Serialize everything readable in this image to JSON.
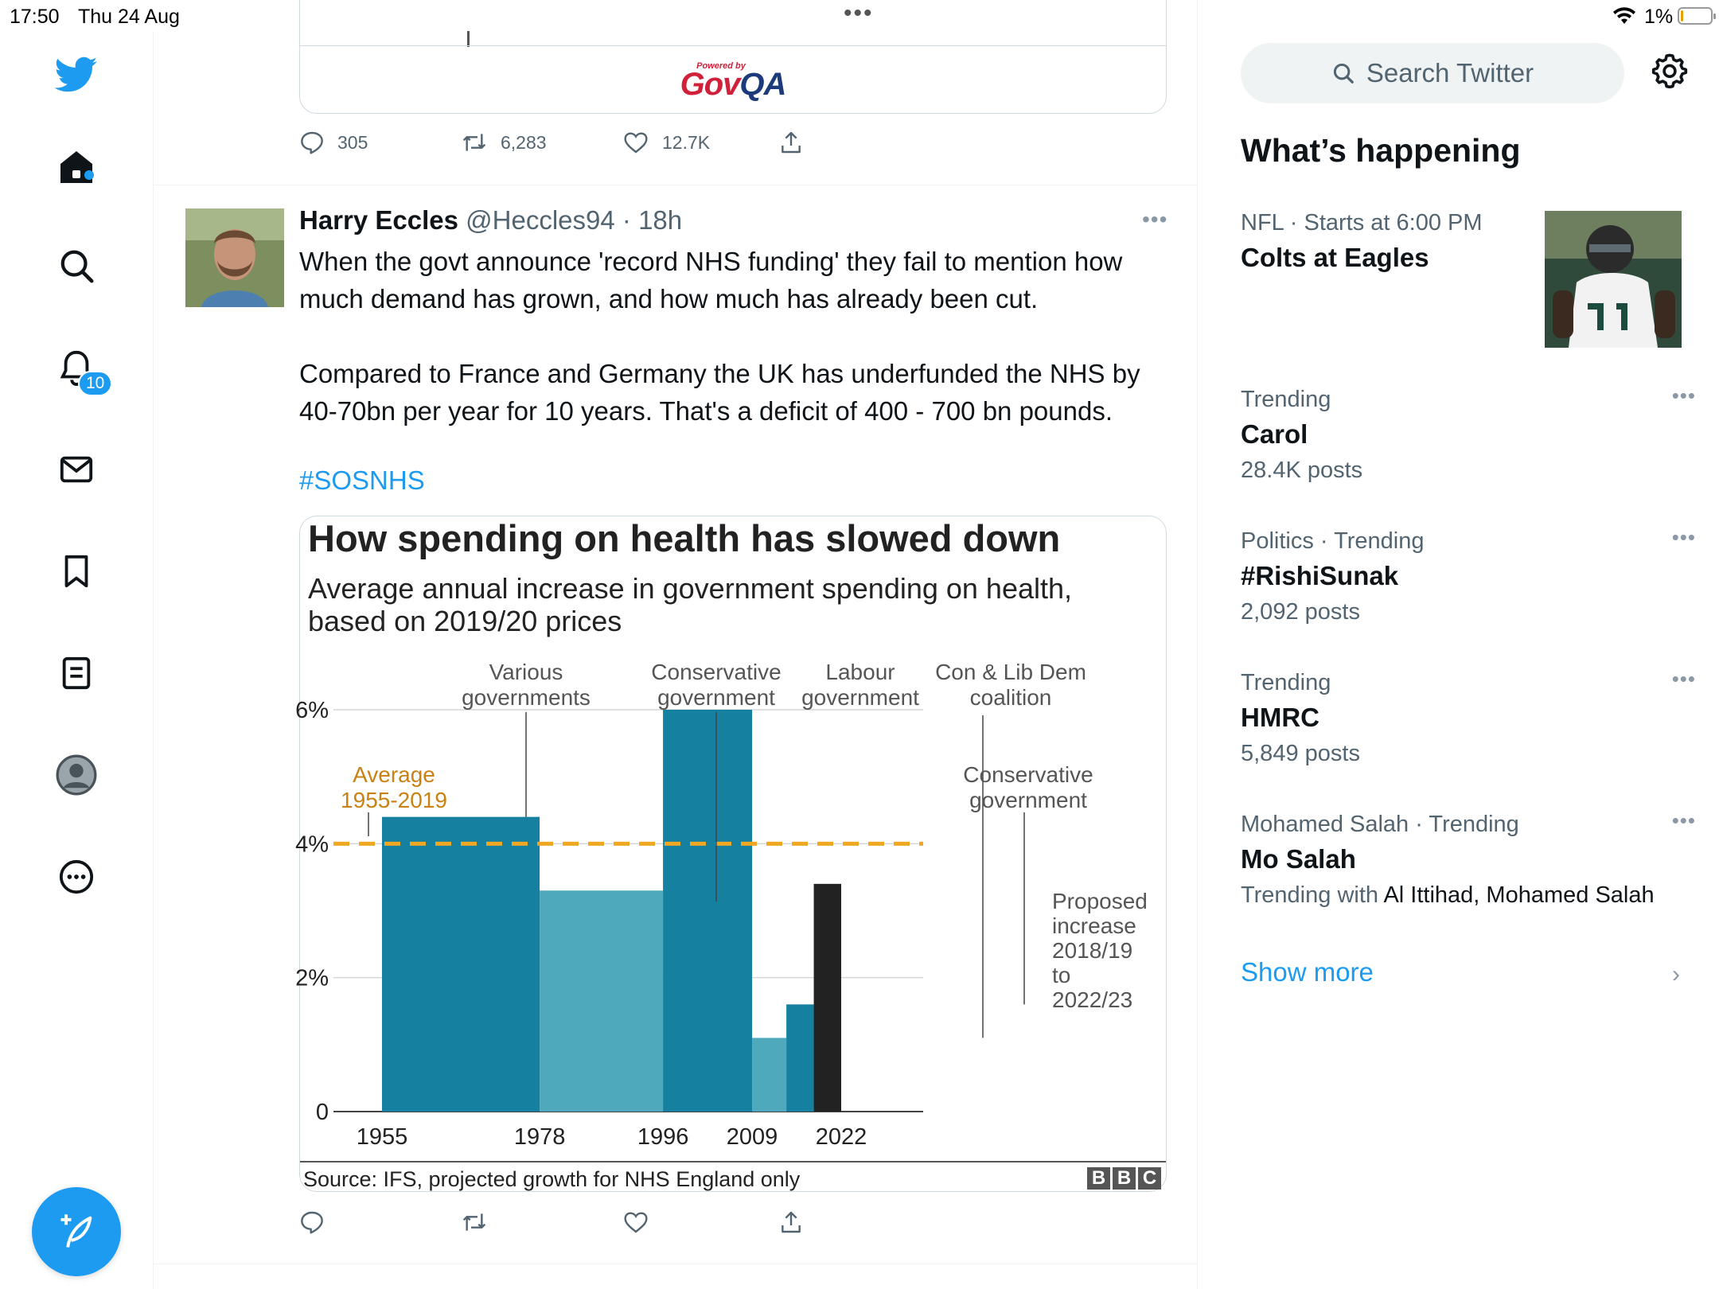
{
  "status_bar": {
    "time": "17:50",
    "date": "Thu 24 Aug",
    "battery": "1%",
    "battery_level": 0.01
  },
  "nav": {
    "items": [
      "home",
      "explore",
      "notifications",
      "messages",
      "bookmarks",
      "lists",
      "profile",
      "more"
    ],
    "notifications_badge": "10",
    "compose_icon": "compose-feather-icon"
  },
  "previous_tweet": {
    "card_logo_small": "Powered by",
    "card_logo_main": "Gov",
    "card_logo_accent": "QA",
    "reply_count": "305",
    "retweet_count": "6,283",
    "like_count": "12.7K"
  },
  "tweet": {
    "author_name": "Harry Eccles",
    "handle": "@Heccles94",
    "time": "18h",
    "text": "When the govt announce 'record NHS funding' they fail to mention how much demand has grown, and how much has already been cut.\n\nCompared to France and Germany the UK has underfunded the NHS by 40-70bn per year for 10 years. That's a deficit of 400 - 700 bn pounds.",
    "hashtag": "#SOSNHS"
  },
  "chart_data": {
    "type": "bar",
    "title": "How spending on health has slowed down",
    "subtitle": "Average annual increase in government spending on health,\nbased on 2019/20 prices",
    "x_ticks": [
      "1955",
      "1978",
      "1996",
      "2009",
      "2022"
    ],
    "y_ticks": [
      "0",
      "2%",
      "4%",
      "6%"
    ],
    "ylim": [
      0,
      6
    ],
    "series": [
      {
        "label": "Various governments",
        "start": 1955,
        "end": 1978,
        "value": 4.4,
        "color": "#1680a0"
      },
      {
        "label": "Conservative government",
        "start": 1978,
        "end": 1996,
        "value": 3.3,
        "color": "#4fa9bd"
      },
      {
        "label": "Labour government",
        "start": 1996,
        "end": 2009,
        "value": 6.0,
        "color": "#1680a0"
      },
      {
        "label": "Con & Lib Dem coalition",
        "start": 2009,
        "end": 2014,
        "value": 1.1,
        "color": "#4fa9bd"
      },
      {
        "label": "Conservative government",
        "start": 2014,
        "end": 2018,
        "value": 1.6,
        "color": "#1680a0"
      },
      {
        "label": "Proposed increase 2018/19 to 2022/23",
        "start": 2018,
        "end": 2022,
        "value": 3.4,
        "color": "#222222"
      }
    ],
    "average_line": {
      "value": 4.0,
      "label_1": "Average",
      "label_2": "1955-2019",
      "color": "#f0a823"
    },
    "annotations": {
      "various_1": "Various",
      "various_2": "governments",
      "con1_1": "Conservative",
      "con1_2": "government",
      "lab_1": "Labour",
      "lab_2": "government",
      "coal_1": "Con & Lib Dem",
      "coal_2": "coalition",
      "con2_1": "Conservative",
      "con2_2": "government",
      "prop_1": "Proposed",
      "prop_2": "increase",
      "prop_3": "2018/19",
      "prop_4": "to",
      "prop_5": "2022/23"
    },
    "source": "Source: IFS, projected growth for NHS England only",
    "logo": [
      "B",
      "B",
      "C"
    ],
    "grid": true
  },
  "sidebar": {
    "search_placeholder": "Search Twitter",
    "heading": "What’s happening",
    "trends": [
      {
        "meta": "NFL · Starts at 6:00 PM",
        "title": "Colts at Eagles",
        "sub": ""
      },
      {
        "meta": "Trending",
        "title": "Carol",
        "sub": "28.4K posts"
      },
      {
        "meta": "Politics · Trending",
        "title": "#RishiSunak",
        "sub": "2,092 posts"
      },
      {
        "meta": "Trending",
        "title": "HMRC",
        "sub": "5,849 posts"
      },
      {
        "meta": "Mohamed Salah · Trending",
        "title": "Mo Salah",
        "sub_prefix": "Trending with ",
        "sub_names": "Al Ittihad, Mohamed Salah"
      }
    ],
    "show_more": "Show more"
  }
}
